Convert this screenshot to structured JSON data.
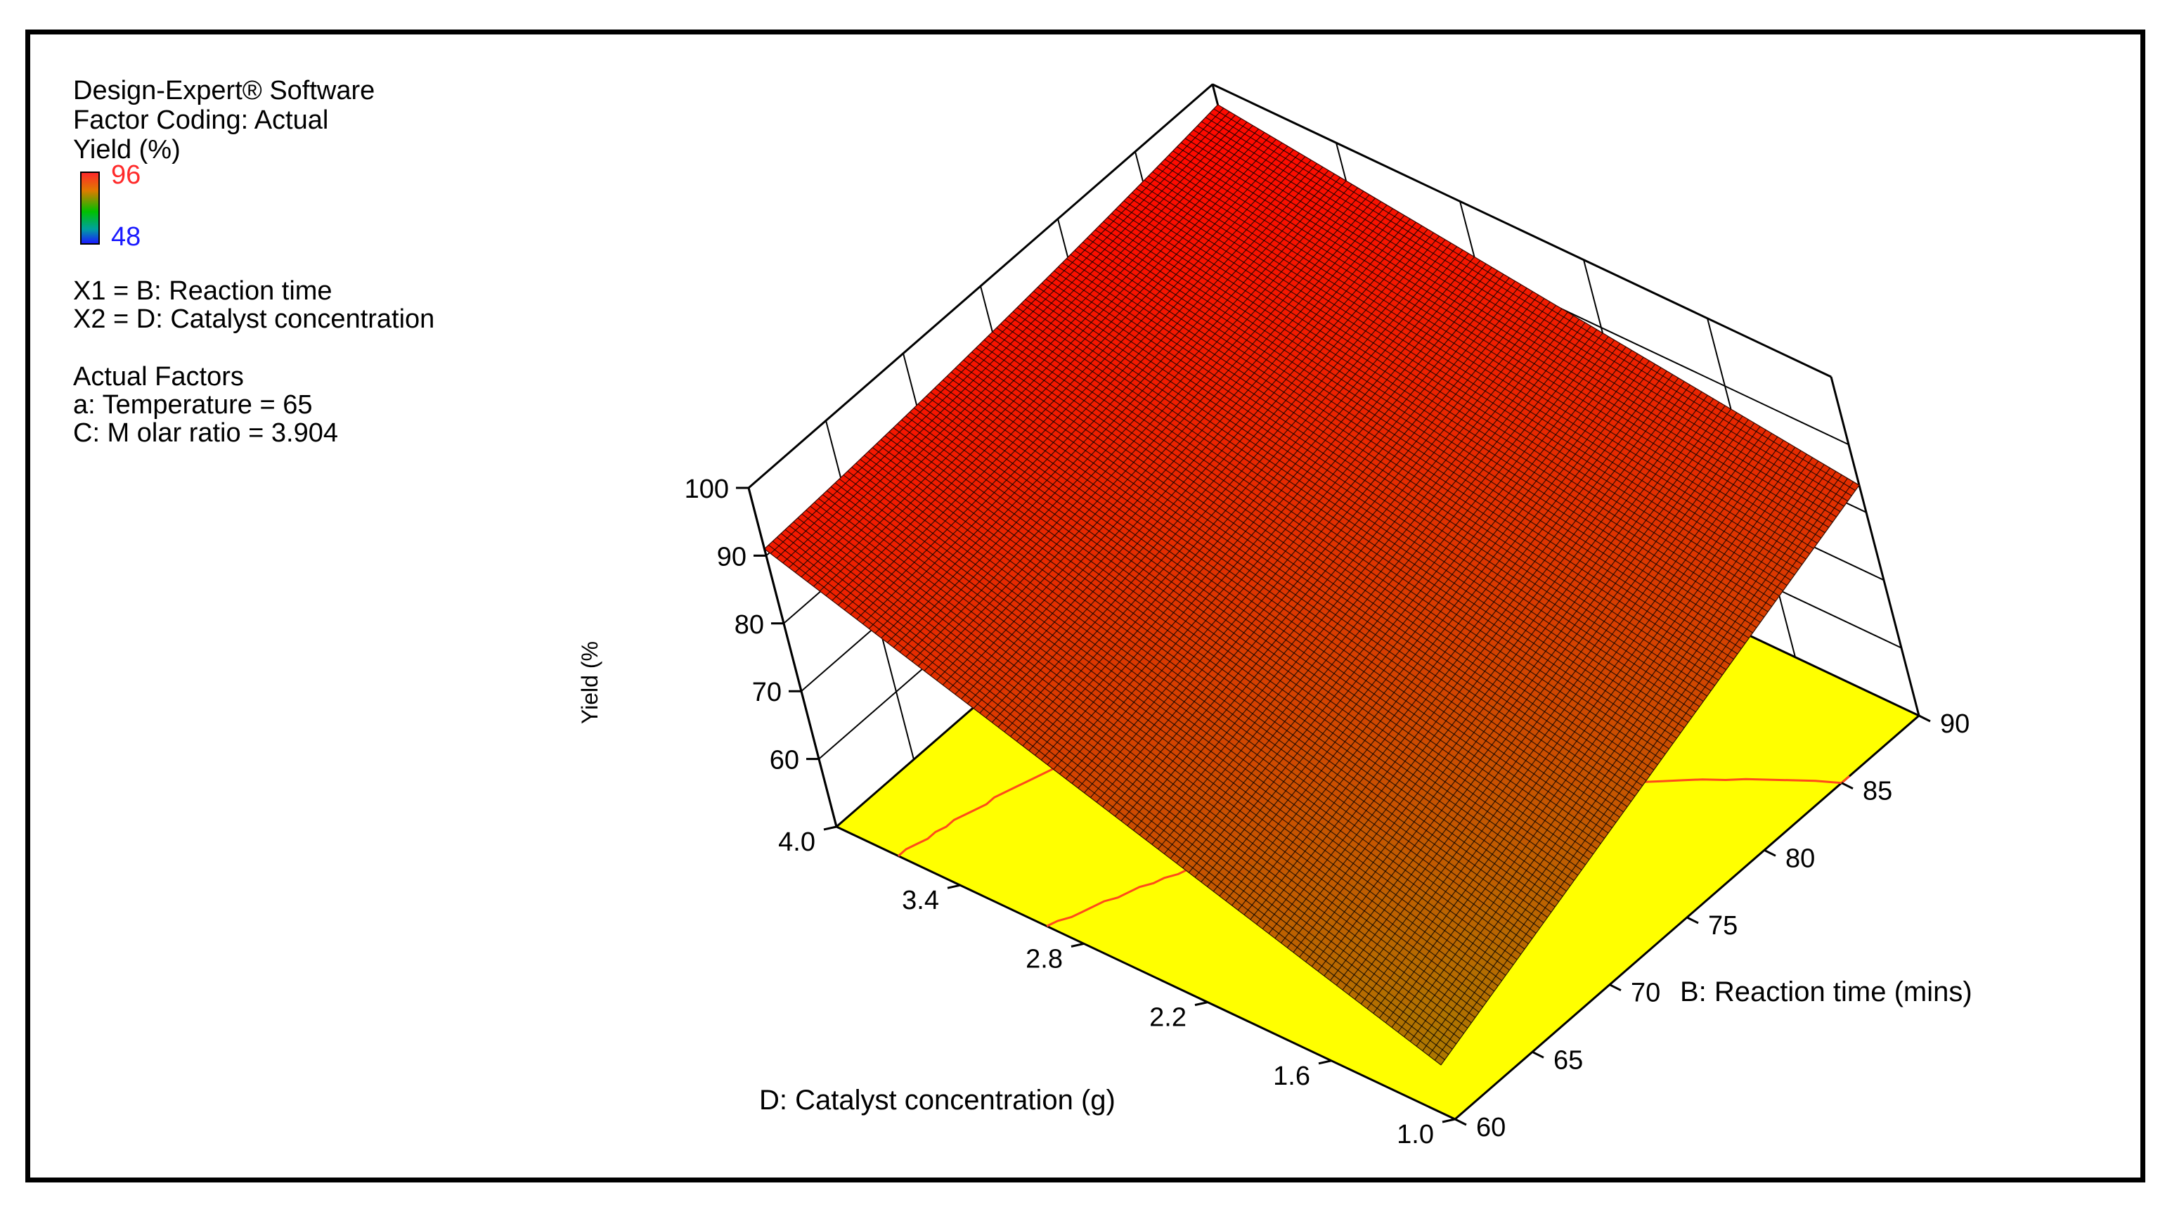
{
  "legend": {
    "software": "Design-Expert® Software",
    "coding": "Factor Coding: Actual",
    "response": "Yield (%)",
    "high_label": "96",
    "low_label": "48",
    "x1": "X1 = B: Reaction time",
    "x2": "X2 = D: Catalyst concentration",
    "actual_header": "Actual Factors",
    "actual_a": "a: Temperature = 65",
    "actual_c": "C: M olar ratio = 3.904"
  },
  "colors": {
    "high": "#ff2a2a",
    "low": "#1a1aff",
    "floor": "#ffff00",
    "contour": "#ff4a1a"
  },
  "chart_data": {
    "type": "surface",
    "title": "",
    "xlabel": "B: Reaction time (mins)",
    "ylabel": "D: Catalyst concentration (g)",
    "zlabel": "Yield (%",
    "x_ticks": [
      "60",
      "65",
      "70",
      "75",
      "80",
      "85",
      "90"
    ],
    "y_ticks": [
      "1.0",
      "1.6",
      "2.2",
      "2.8",
      "3.4",
      "4.0"
    ],
    "z_ticks": [
      "60",
      "70",
      "80",
      "90",
      "100"
    ],
    "xlim": [
      60,
      90
    ],
    "ylim": [
      1.0,
      4.0
    ],
    "zlim": [
      50,
      100
    ],
    "color_range": [
      48,
      96
    ],
    "corner_yields": {
      "time60_cat1": 58,
      "time60_cat4": 91,
      "time90_cat1": 84,
      "time90_cat4": 97
    }
  }
}
